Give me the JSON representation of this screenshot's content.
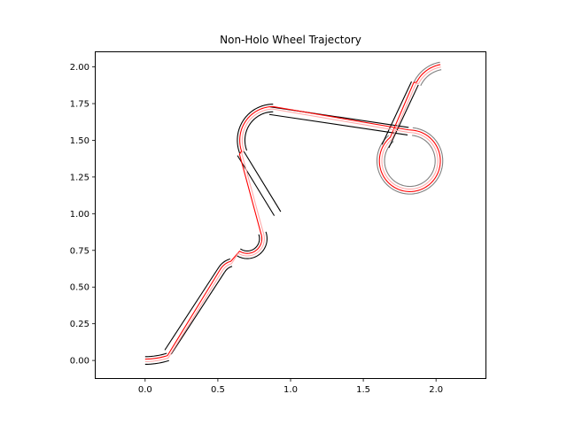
{
  "chart_data": {
    "type": "line",
    "title": "Non-Holo Wheel Trajectory",
    "xlabel": "",
    "ylabel": "",
    "xlim": [
      -0.34,
      2.34
    ],
    "ylim": [
      -0.12,
      2.1
    ],
    "xticks": [
      0.0,
      0.5,
      1.0,
      1.5,
      2.0
    ],
    "xtick_labels": [
      "0.0",
      "0.5",
      "1.0",
      "1.5",
      "2.0"
    ],
    "yticks": [
      0.0,
      0.25,
      0.5,
      0.75,
      1.0,
      1.25,
      1.5,
      1.75,
      2.0
    ],
    "ytick_labels": [
      "0.00",
      "0.25",
      "0.50",
      "0.75",
      "1.00",
      "1.25",
      "1.50",
      "1.75",
      "2.00"
    ],
    "grid": false,
    "legend": "none",
    "path_segments": [
      {
        "kind": "arc",
        "center": [
          0.0,
          0.52
        ],
        "radius": 0.52,
        "start_deg": -90,
        "end_deg": -72.5
      },
      {
        "kind": "line",
        "from": [
          0.157,
          0.0565
        ],
        "to": [
          0.525,
          0.616
        ]
      },
      {
        "kind": "arc",
        "center": [
          0.62,
          0.56
        ],
        "radius": 0.11,
        "start_deg": 150,
        "end_deg": 105
      },
      {
        "kind": "arc",
        "center": [
          0.702,
          0.83
        ],
        "radius": 0.11,
        "start_deg": 236,
        "end_deg": 380
      },
      {
        "kind": "line",
        "from": [
          0.91,
          1.0
        ],
        "to": [
          0.657,
          1.41
        ]
      },
      {
        "kind": "arc",
        "center": [
          0.88,
          1.5
        ],
        "radius": 0.22,
        "start_deg": 201,
        "end_deg": 90
      },
      {
        "kind": "line",
        "from": [
          0.857,
          1.702
        ],
        "to": [
          1.808,
          1.562
        ]
      },
      {
        "kind": "arc",
        "center": [
          1.82,
          1.36
        ],
        "radius": 0.2,
        "start_deg": 85,
        "end_deg": -230
      },
      {
        "kind": "line",
        "from": [
          1.652,
          1.46
        ],
        "to": [
          1.855,
          1.889
        ]
      },
      {
        "kind": "arc",
        "center": [
          2.07,
          1.79
        ],
        "radius": 0.22,
        "start_deg": 155,
        "end_deg": 100
      }
    ],
    "series": [
      {
        "role": "wheel-outer",
        "color": "#000000",
        "offset": 0.026,
        "faded_segments": [
          7,
          9
        ]
      },
      {
        "role": "wheel-inner",
        "color": "#000000",
        "offset": -0.026,
        "faded_segments": [
          7,
          9
        ]
      },
      {
        "role": "path-offset",
        "color": "#ff0000",
        "offset": 0.0095
      },
      {
        "role": "center-path",
        "color": "#ffaaaa",
        "offset": -0.0075
      }
    ],
    "faded_color": "#808080"
  }
}
